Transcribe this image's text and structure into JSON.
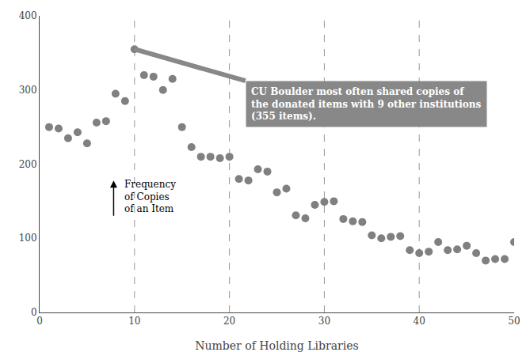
{
  "chart_data": {
    "type": "scatter",
    "x": [
      1,
      2,
      3,
      4,
      5,
      6,
      7,
      8,
      9,
      10,
      11,
      12,
      13,
      14,
      15,
      16,
      17,
      18,
      19,
      20,
      21,
      22,
      23,
      24,
      25,
      26,
      27,
      28,
      29,
      30,
      31,
      32,
      33,
      34,
      35,
      36,
      37,
      38,
      39,
      40,
      41,
      42,
      43,
      44,
      45,
      46,
      47,
      48,
      49,
      50
    ],
    "values": [
      250,
      248,
      235,
      243,
      228,
      256,
      258,
      295,
      285,
      355,
      320,
      318,
      300,
      315,
      250,
      223,
      210,
      210,
      208,
      210,
      180,
      178,
      193,
      190,
      162,
      167,
      131,
      127,
      145,
      149,
      150,
      126,
      123,
      122,
      104,
      100,
      102,
      103,
      84,
      80,
      82,
      95,
      84,
      85,
      90,
      80,
      70,
      72,
      72,
      95
    ],
    "color": "#808080",
    "xlim": [
      0,
      50
    ],
    "ylim": [
      0,
      400
    ],
    "xticks": [
      0,
      10,
      20,
      30,
      40,
      50
    ],
    "yticks": [
      0,
      100,
      200,
      300,
      400
    ],
    "xlabel": "Number of Holding Libraries",
    "grid": false,
    "dashed_lines_x": [
      10,
      20,
      30,
      40
    ],
    "annotations": [
      {
        "text": "CU Boulder most often shared copies of\nthe donated items with 9 other institutions\n(355 items).",
        "x": 10,
        "y": 355
      },
      {
        "text": "Frequency\nof Copies\nof an Item"
      }
    ]
  }
}
